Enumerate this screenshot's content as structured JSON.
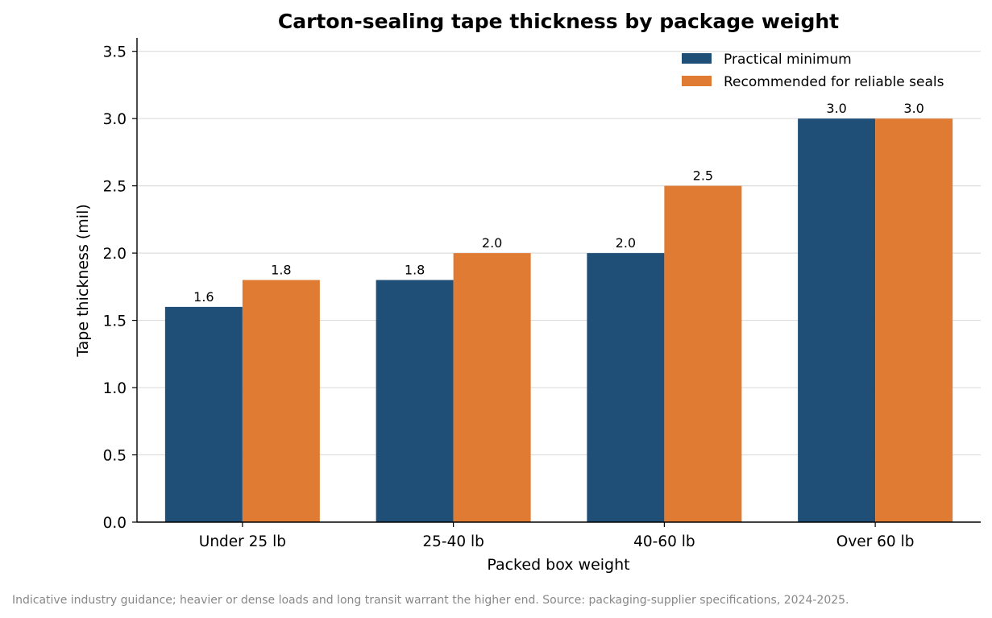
{
  "chart_data": {
    "type": "bar",
    "title": "Carton-sealing tape thickness by package weight",
    "xlabel": "Packed box weight",
    "ylabel": "Tape thickness (mil)",
    "categories": [
      "Under 25 lb",
      "25-40 lb",
      "40-60 lb",
      "Over 60 lb"
    ],
    "series": [
      {
        "name": "Practical minimum",
        "values": [
          1.6,
          1.8,
          2.0,
          3.0
        ],
        "labels": [
          "1.6",
          "1.8",
          "2.0",
          "3.0"
        ],
        "color": "#1f4e77"
      },
      {
        "name": "Recommended for reliable seals",
        "values": [
          1.8,
          2.0,
          2.5,
          3.0
        ],
        "labels": [
          "1.8",
          "2.0",
          "2.5",
          "3.0"
        ],
        "color": "#e07b33"
      }
    ],
    "ylim": [
      0,
      3.6
    ],
    "yticks": [
      0.0,
      0.5,
      1.0,
      1.5,
      2.0,
      2.5,
      3.0,
      3.5
    ],
    "ytick_labels": [
      "0.0",
      "0.5",
      "1.0",
      "1.5",
      "2.0",
      "2.5",
      "3.0",
      "3.5"
    ],
    "grid": "horizontal",
    "legend_position": "top-right"
  },
  "footnote": "Indicative industry guidance; heavier or dense loads and long transit warrant the higher end. Source: packaging-supplier specifications, 2024-2025."
}
